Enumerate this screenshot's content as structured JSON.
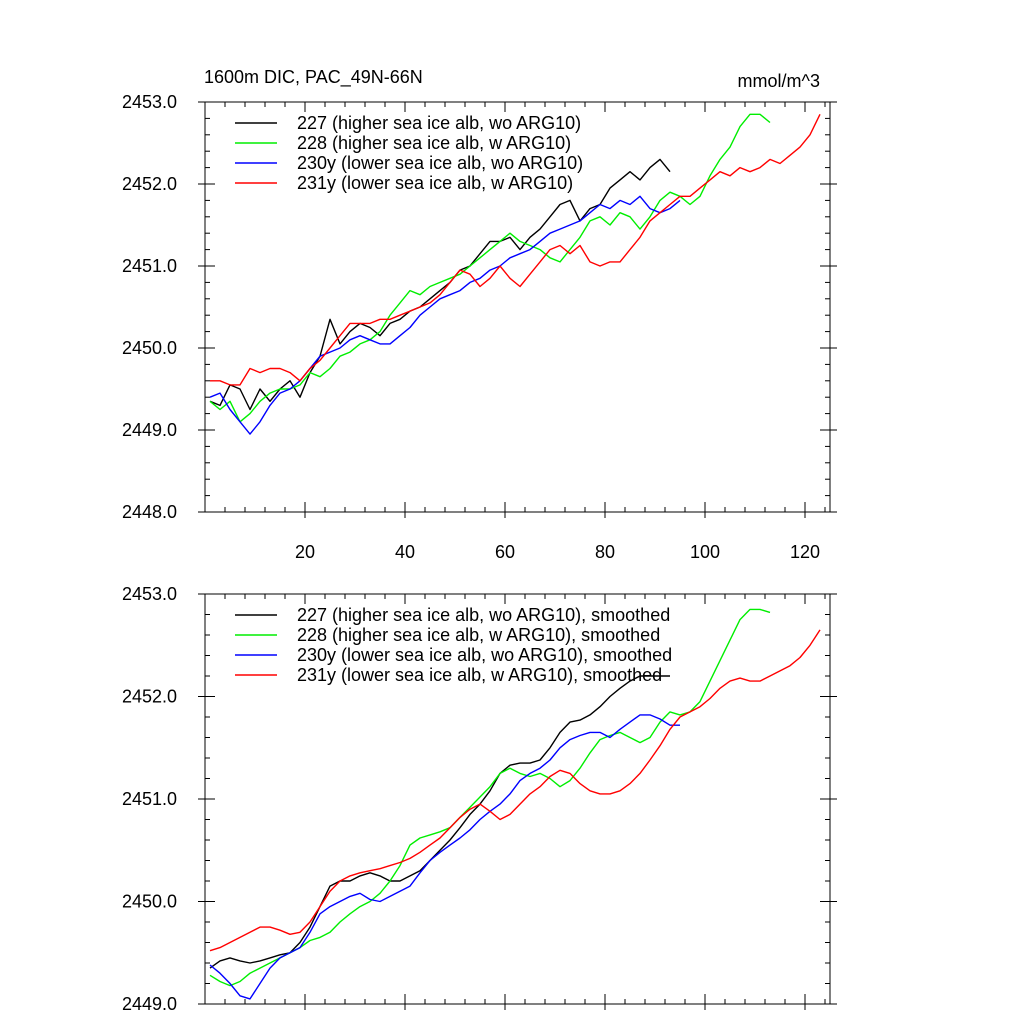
{
  "title": "1600m DIC, PAC_49N-66N",
  "units": "mmol/m^3",
  "chart_data": [
    {
      "type": "line",
      "title": "1600m DIC, PAC_49N-66N",
      "xlabel": "",
      "ylabel": "",
      "xlim": [
        0,
        125
      ],
      "ylim": [
        2448.0,
        2453.0
      ],
      "xticks": [
        20,
        40,
        60,
        80,
        100,
        120
      ],
      "xtick_labels": [
        "20",
        "40",
        "60",
        "80",
        "100",
        "120"
      ],
      "yticks": [
        2448.0,
        2449.0,
        2450.0,
        2451.0,
        2452.0,
        2453.0
      ],
      "ytick_labels": [
        "2448.0",
        "2449.0",
        "2450.0",
        "2451.0",
        "2452.0",
        "2453.0"
      ],
      "grid": false,
      "legend": "top-left",
      "series": [
        {
          "name": "227 (higher sea ice alb, wo ARG10)",
          "color": "#000000",
          "x": [
            1,
            3,
            5,
            7,
            9,
            11,
            13,
            15,
            17,
            19,
            21,
            23,
            25,
            27,
            29,
            31,
            33,
            35,
            37,
            39,
            41,
            43,
            45,
            47,
            49,
            51,
            53,
            55,
            57,
            59,
            61,
            63,
            65,
            67,
            69,
            71,
            73,
            75,
            77,
            79,
            81,
            83,
            85,
            87,
            89,
            91,
            93
          ],
          "y": [
            2449.35,
            2449.3,
            2449.55,
            2449.5,
            2449.25,
            2449.5,
            2449.35,
            2449.5,
            2449.6,
            2449.4,
            2449.7,
            2449.9,
            2450.35,
            2450.05,
            2450.2,
            2450.3,
            2450.25,
            2450.15,
            2450.3,
            2450.35,
            2450.45,
            2450.5,
            2450.6,
            2450.7,
            2450.8,
            2450.95,
            2451.0,
            2451.15,
            2451.3,
            2451.3,
            2451.35,
            2451.2,
            2451.35,
            2451.45,
            2451.6,
            2451.75,
            2451.8,
            2451.55,
            2451.7,
            2451.75,
            2451.95,
            2452.05,
            2452.15,
            2452.05,
            2452.2,
            2452.3,
            2452.15
          ]
        },
        {
          "name": "228 (higher sea ice alb, w ARG10)",
          "color": "#00ee00",
          "x": [
            1,
            3,
            5,
            7,
            9,
            11,
            13,
            15,
            17,
            19,
            21,
            23,
            25,
            27,
            29,
            31,
            33,
            35,
            37,
            39,
            41,
            43,
            45,
            47,
            49,
            51,
            53,
            55,
            57,
            59,
            61,
            63,
            65,
            67,
            69,
            71,
            73,
            75,
            77,
            79,
            81,
            83,
            85,
            87,
            89,
            91,
            93,
            95,
            97,
            99,
            101,
            103,
            105,
            107,
            109,
            111,
            113
          ],
          "y": [
            2449.35,
            2449.25,
            2449.35,
            2449.1,
            2449.2,
            2449.35,
            2449.45,
            2449.5,
            2449.5,
            2449.55,
            2449.7,
            2449.65,
            2449.75,
            2449.9,
            2449.95,
            2450.05,
            2450.1,
            2450.2,
            2450.4,
            2450.55,
            2450.7,
            2450.65,
            2450.75,
            2450.8,
            2450.85,
            2450.9,
            2451.0,
            2451.1,
            2451.2,
            2451.3,
            2451.4,
            2451.3,
            2451.25,
            2451.2,
            2451.1,
            2451.05,
            2451.2,
            2451.35,
            2451.55,
            2451.6,
            2451.5,
            2451.65,
            2451.6,
            2451.45,
            2451.6,
            2451.8,
            2451.9,
            2451.85,
            2451.75,
            2451.85,
            2452.1,
            2452.3,
            2452.45,
            2452.7,
            2452.85,
            2452.85,
            2452.75
          ]
        },
        {
          "name": "230y (lower sea ice alb, wo ARG10)",
          "color": "#0000ff",
          "x": [
            1,
            3,
            5,
            7,
            9,
            11,
            13,
            15,
            17,
            19,
            21,
            23,
            25,
            27,
            29,
            31,
            33,
            35,
            37,
            39,
            41,
            43,
            45,
            47,
            49,
            51,
            53,
            55,
            57,
            59,
            61,
            63,
            65,
            67,
            69,
            71,
            73,
            75,
            77,
            79,
            81,
            83,
            85,
            87,
            89,
            91,
            93,
            95
          ],
          "y": [
            2449.4,
            2449.45,
            2449.25,
            2449.1,
            2448.95,
            2449.1,
            2449.3,
            2449.45,
            2449.5,
            2449.6,
            2449.75,
            2449.9,
            2449.95,
            2450.0,
            2450.1,
            2450.15,
            2450.1,
            2450.05,
            2450.05,
            2450.15,
            2450.25,
            2450.4,
            2450.5,
            2450.6,
            2450.65,
            2450.7,
            2450.8,
            2450.85,
            2450.95,
            2451.0,
            2451.1,
            2451.15,
            2451.2,
            2451.3,
            2451.4,
            2451.45,
            2451.5,
            2451.55,
            2451.65,
            2451.75,
            2451.7,
            2451.8,
            2451.75,
            2451.85,
            2451.7,
            2451.65,
            2451.7,
            2451.8
          ]
        },
        {
          "name": "231y (lower sea ice alb, w ARG10)",
          "color": "#ff0000",
          "x": [
            1,
            3,
            5,
            7,
            9,
            11,
            13,
            15,
            17,
            19,
            21,
            23,
            25,
            27,
            29,
            31,
            33,
            35,
            37,
            39,
            41,
            43,
            45,
            47,
            49,
            51,
            53,
            55,
            57,
            59,
            61,
            63,
            65,
            67,
            69,
            71,
            73,
            75,
            77,
            79,
            81,
            83,
            85,
            87,
            89,
            91,
            93,
            95,
            97,
            99,
            101,
            103,
            105,
            107,
            109,
            111,
            113,
            115,
            117,
            119,
            121,
            123
          ],
          "y": [
            2449.6,
            2449.6,
            2449.55,
            2449.55,
            2449.75,
            2449.7,
            2449.75,
            2449.75,
            2449.7,
            2449.6,
            2449.75,
            2449.85,
            2450.0,
            2450.15,
            2450.3,
            2450.3,
            2450.3,
            2450.35,
            2450.35,
            2450.4,
            2450.45,
            2450.5,
            2450.55,
            2450.65,
            2450.8,
            2450.95,
            2450.9,
            2450.75,
            2450.85,
            2451.0,
            2450.85,
            2450.75,
            2450.9,
            2451.05,
            2451.2,
            2451.25,
            2451.15,
            2451.25,
            2451.05,
            2451.0,
            2451.05,
            2451.05,
            2451.2,
            2451.35,
            2451.55,
            2451.65,
            2451.75,
            2451.85,
            2451.85,
            2451.95,
            2452.05,
            2452.15,
            2452.1,
            2452.2,
            2452.15,
            2452.2,
            2452.3,
            2452.25,
            2452.35,
            2452.45,
            2452.6,
            2452.85
          ]
        }
      ]
    },
    {
      "type": "line",
      "title": "",
      "xlabel": "",
      "ylabel": "",
      "xlim": [
        0,
        125
      ],
      "ylim": [
        2449.0,
        2453.0
      ],
      "xticks": [
        20,
        40,
        60,
        80,
        100,
        120
      ],
      "yticks": [
        2449.0,
        2450.0,
        2451.0,
        2452.0,
        2453.0
      ],
      "ytick_labels": [
        "2449.0",
        "2450.0",
        "2451.0",
        "2452.0",
        "2453.0"
      ],
      "grid": false,
      "legend": "top-left",
      "series": [
        {
          "name": "227 (higher sea ice alb, wo ARG10), smoothed",
          "color": "#000000",
          "x": [
            1,
            3,
            5,
            7,
            9,
            11,
            13,
            15,
            17,
            19,
            21,
            23,
            25,
            27,
            29,
            31,
            33,
            35,
            37,
            39,
            41,
            43,
            45,
            47,
            49,
            51,
            53,
            55,
            57,
            59,
            61,
            63,
            65,
            67,
            69,
            71,
            73,
            75,
            77,
            79,
            81,
            83,
            85,
            87,
            89,
            91,
            93
          ],
          "y": [
            2449.35,
            2449.42,
            2449.45,
            2449.42,
            2449.4,
            2449.42,
            2449.45,
            2449.48,
            2449.5,
            2449.6,
            2449.75,
            2449.95,
            2450.15,
            2450.2,
            2450.2,
            2450.25,
            2450.28,
            2450.25,
            2450.2,
            2450.2,
            2450.25,
            2450.3,
            2450.4,
            2450.5,
            2450.6,
            2450.72,
            2450.85,
            2450.95,
            2451.08,
            2451.25,
            2451.33,
            2451.35,
            2451.35,
            2451.38,
            2451.5,
            2451.65,
            2451.75,
            2451.77,
            2451.82,
            2451.9,
            2452.0,
            2452.08,
            2452.15,
            2452.2,
            2452.2,
            2452.2,
            2452.2
          ]
        },
        {
          "name": "228 (higher sea ice alb, w ARG10), smoothed",
          "color": "#00ee00",
          "x": [
            1,
            3,
            5,
            7,
            9,
            11,
            13,
            15,
            17,
            19,
            21,
            23,
            25,
            27,
            29,
            31,
            33,
            35,
            37,
            39,
            41,
            43,
            45,
            47,
            49,
            51,
            53,
            55,
            57,
            59,
            61,
            63,
            65,
            67,
            69,
            71,
            73,
            75,
            77,
            79,
            81,
            83,
            85,
            87,
            89,
            91,
            93,
            95,
            97,
            99,
            101,
            103,
            105,
            107,
            109,
            111,
            113
          ],
          "y": [
            2449.28,
            2449.22,
            2449.18,
            2449.22,
            2449.3,
            2449.35,
            2449.4,
            2449.45,
            2449.5,
            2449.55,
            2449.62,
            2449.65,
            2449.7,
            2449.8,
            2449.88,
            2449.95,
            2450.0,
            2450.08,
            2450.2,
            2450.35,
            2450.55,
            2450.62,
            2450.65,
            2450.68,
            2450.72,
            2450.82,
            2450.92,
            2451.02,
            2451.12,
            2451.25,
            2451.3,
            2451.25,
            2451.22,
            2451.25,
            2451.2,
            2451.12,
            2451.18,
            2451.3,
            2451.45,
            2451.58,
            2451.62,
            2451.65,
            2451.6,
            2451.55,
            2451.6,
            2451.75,
            2451.85,
            2451.82,
            2451.85,
            2451.95,
            2452.15,
            2452.35,
            2452.55,
            2452.75,
            2452.85,
            2452.85,
            2452.82
          ]
        },
        {
          "name": "230y (lower sea ice alb, wo ARG10), smoothed",
          "color": "#0000ff",
          "x": [
            1,
            3,
            5,
            7,
            9,
            11,
            13,
            15,
            17,
            19,
            21,
            23,
            25,
            27,
            29,
            31,
            33,
            35,
            37,
            39,
            41,
            43,
            45,
            47,
            49,
            51,
            53,
            55,
            57,
            59,
            61,
            63,
            65,
            67,
            69,
            71,
            73,
            75,
            77,
            79,
            81,
            83,
            85,
            87,
            89,
            91,
            93,
            95
          ],
          "y": [
            2449.38,
            2449.3,
            2449.2,
            2449.08,
            2449.05,
            2449.2,
            2449.35,
            2449.45,
            2449.5,
            2449.55,
            2449.7,
            2449.88,
            2449.95,
            2450.0,
            2450.05,
            2450.08,
            2450.02,
            2450.0,
            2450.05,
            2450.1,
            2450.15,
            2450.28,
            2450.4,
            2450.48,
            2450.55,
            2450.62,
            2450.7,
            2450.8,
            2450.88,
            2450.95,
            2451.05,
            2451.18,
            2451.25,
            2451.3,
            2451.38,
            2451.5,
            2451.58,
            2451.62,
            2451.65,
            2451.65,
            2451.6,
            2451.68,
            2451.75,
            2451.82,
            2451.82,
            2451.78,
            2451.72,
            2451.72
          ]
        },
        {
          "name": "231y (lower sea ice alb, w ARG10), smoothed",
          "color": "#ff0000",
          "x": [
            1,
            3,
            5,
            7,
            9,
            11,
            13,
            15,
            17,
            19,
            21,
            23,
            25,
            27,
            29,
            31,
            33,
            35,
            37,
            39,
            41,
            43,
            45,
            47,
            49,
            51,
            53,
            55,
            57,
            59,
            61,
            63,
            65,
            67,
            69,
            71,
            73,
            75,
            77,
            79,
            81,
            83,
            85,
            87,
            89,
            91,
            93,
            95,
            97,
            99,
            101,
            103,
            105,
            107,
            109,
            111,
            113,
            115,
            117,
            119,
            121,
            123
          ],
          "y": [
            2449.52,
            2449.55,
            2449.6,
            2449.65,
            2449.7,
            2449.75,
            2449.75,
            2449.72,
            2449.68,
            2449.7,
            2449.8,
            2449.95,
            2450.1,
            2450.2,
            2450.25,
            2450.28,
            2450.3,
            2450.32,
            2450.35,
            2450.38,
            2450.42,
            2450.48,
            2450.55,
            2450.62,
            2450.72,
            2450.82,
            2450.9,
            2450.95,
            2450.88,
            2450.8,
            2450.85,
            2450.95,
            2451.05,
            2451.12,
            2451.22,
            2451.28,
            2451.25,
            2451.15,
            2451.08,
            2451.05,
            2451.05,
            2451.08,
            2451.15,
            2451.25,
            2451.38,
            2451.52,
            2451.68,
            2451.8,
            2451.85,
            2451.9,
            2451.98,
            2452.08,
            2452.15,
            2452.18,
            2452.15,
            2452.15,
            2452.2,
            2452.25,
            2452.3,
            2452.38,
            2452.5,
            2452.65
          ]
        }
      ]
    }
  ]
}
